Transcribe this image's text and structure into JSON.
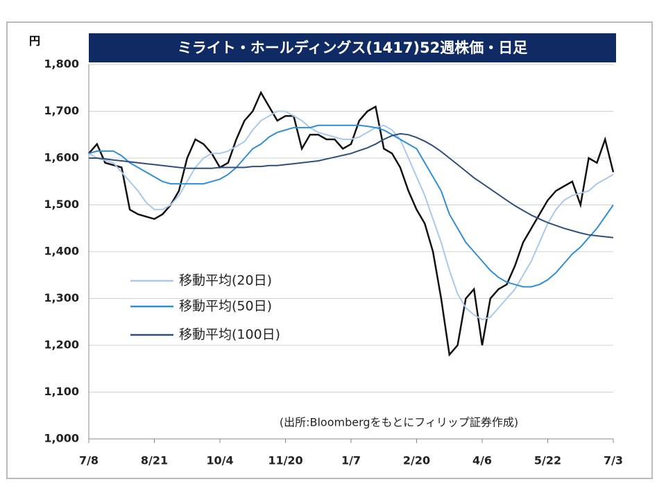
{
  "chart_data": {
    "type": "line",
    "title": "ミライト・ホールディングス(1417)52週株価・日足",
    "y_unit": "円",
    "source": "(出所:Bloombergをもとにフィリップ証券作成)",
    "categories": [
      "7/8",
      null,
      null,
      null,
      null,
      null,
      null,
      null,
      "8/21",
      null,
      null,
      null,
      null,
      null,
      null,
      null,
      "10/4",
      null,
      null,
      null,
      null,
      null,
      null,
      null,
      "11/20",
      null,
      null,
      null,
      null,
      null,
      null,
      null,
      "1/7",
      null,
      null,
      null,
      null,
      null,
      null,
      null,
      "2/20",
      null,
      null,
      null,
      null,
      null,
      null,
      null,
      "4/6",
      null,
      null,
      null,
      null,
      null,
      null,
      null,
      "5/22",
      null,
      null,
      null,
      null,
      null,
      null,
      null,
      "7/3"
    ],
    "ylim": [
      1000,
      1800
    ],
    "yticks": [
      {
        "value": 1000,
        "label": "1,000"
      },
      {
        "value": 1100,
        "label": "1,100"
      },
      {
        "value": 1200,
        "label": "1,200"
      },
      {
        "value": 1300,
        "label": "1,300"
      },
      {
        "value": 1400,
        "label": "1,400"
      },
      {
        "value": 1500,
        "label": "1,500"
      },
      {
        "value": 1600,
        "label": "1,600"
      },
      {
        "value": 1700,
        "label": "1,700"
      },
      {
        "value": 1800,
        "label": "1,800"
      }
    ],
    "grid": true,
    "price": {
      "color": "#111111",
      "values": [
        1610,
        1630,
        1590,
        1585,
        1580,
        1490,
        1480,
        1475,
        1470,
        1480,
        1500,
        1530,
        1600,
        1640,
        1630,
        1610,
        1580,
        1590,
        1640,
        1680,
        1700,
        1740,
        1710,
        1680,
        1690,
        1690,
        1620,
        1650,
        1650,
        1640,
        1640,
        1620,
        1630,
        1680,
        1700,
        1710,
        1620,
        1610,
        1580,
        1530,
        1490,
        1460,
        1400,
        1300,
        1180,
        1200,
        1300,
        1320,
        1200,
        1300,
        1320,
        1330,
        1370,
        1420,
        1450,
        1480,
        1510,
        1530,
        1540,
        1550,
        1500,
        1600,
        1590,
        1640,
        1570
      ]
    },
    "series": [
      {
        "name": "移動平均(20日)",
        "color": "#a9c8ea",
        "values": [
          1610,
          1600,
          1595,
          1590,
          1570,
          1550,
          1530,
          1505,
          1490,
          1490,
          1500,
          1520,
          1550,
          1580,
          1600,
          1610,
          1610,
          1615,
          1625,
          1635,
          1660,
          1680,
          1690,
          1700,
          1700,
          1690,
          1680,
          1665,
          1655,
          1650,
          1645,
          1640,
          1640,
          1645,
          1655,
          1665,
          1670,
          1660,
          1640,
          1600,
          1560,
          1520,
          1470,
          1420,
          1360,
          1310,
          1280,
          1265,
          1255,
          1260,
          1280,
          1300,
          1320,
          1350,
          1380,
          1420,
          1460,
          1490,
          1510,
          1520,
          1525,
          1530,
          1545,
          1555,
          1565
        ]
      },
      {
        "name": "移動平均(50日)",
        "color": "#2e8fd6",
        "values": [
          1610,
          1615,
          1615,
          1615,
          1605,
          1590,
          1580,
          1570,
          1560,
          1550,
          1545,
          1545,
          1545,
          1545,
          1545,
          1550,
          1555,
          1565,
          1580,
          1600,
          1620,
          1630,
          1645,
          1655,
          1660,
          1665,
          1665,
          1665,
          1670,
          1670,
          1670,
          1670,
          1670,
          1670,
          1668,
          1665,
          1660,
          1650,
          1640,
          1630,
          1620,
          1590,
          1560,
          1530,
          1480,
          1450,
          1420,
          1400,
          1380,
          1360,
          1345,
          1335,
          1330,
          1325,
          1325,
          1330,
          1340,
          1355,
          1375,
          1395,
          1410,
          1430,
          1450,
          1475,
          1500
        ]
      },
      {
        "name": "移動平均(100日)",
        "color": "#2f4f7a",
        "values": [
          1600,
          1600,
          1598,
          1596,
          1594,
          1592,
          1590,
          1588,
          1586,
          1584,
          1582,
          1580,
          1578,
          1578,
          1578,
          1578,
          1580,
          1580,
          1580,
          1580,
          1582,
          1582,
          1584,
          1584,
          1586,
          1588,
          1590,
          1592,
          1594,
          1598,
          1602,
          1606,
          1610,
          1616,
          1622,
          1630,
          1640,
          1648,
          1652,
          1650,
          1644,
          1636,
          1626,
          1614,
          1600,
          1586,
          1572,
          1558,
          1546,
          1534,
          1522,
          1510,
          1498,
          1488,
          1478,
          1470,
          1462,
          1456,
          1450,
          1445,
          1440,
          1436,
          1434,
          1432,
          1430
        ]
      }
    ]
  }
}
